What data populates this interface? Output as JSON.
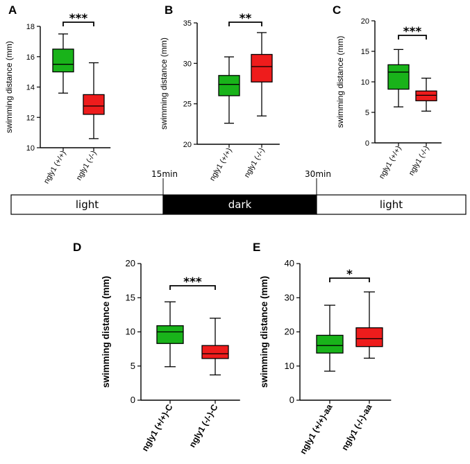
{
  "colors": {
    "wt": "#19b31a",
    "ko": "#ee1c1c",
    "dark": "#000000",
    "light": "#ffffff"
  },
  "timeline": {
    "segments": [
      {
        "label": "light",
        "kind": "light"
      },
      {
        "label": "dark",
        "kind": "dark"
      },
      {
        "label": "light",
        "kind": "light"
      }
    ],
    "markers": [
      "15min",
      "30min"
    ]
  },
  "chart_data": [
    {
      "type": "box",
      "panel": "A",
      "ylabel": "swimming distance (mm)",
      "ylim": [
        10,
        18
      ],
      "yticks": [
        10,
        12,
        14,
        16,
        18
      ],
      "categories": [
        "ngly1 (+/+)",
        "ngly1 (-/-)"
      ],
      "boxes": [
        {
          "min": 13.6,
          "q1": 15.0,
          "median": 15.5,
          "q3": 16.5,
          "max": 17.5
        },
        {
          "min": 10.6,
          "q1": 12.2,
          "median": 12.75,
          "q3": 13.5,
          "max": 15.6
        }
      ],
      "significance": "***"
    },
    {
      "type": "box",
      "panel": "B",
      "ylabel": "swimming distance (mm)",
      "ylim": [
        20,
        35
      ],
      "yticks": [
        20,
        25,
        30,
        35
      ],
      "categories": [
        "ngly1 (+/+)",
        "ngly1 (-/-)"
      ],
      "boxes": [
        {
          "min": 22.6,
          "q1": 26.0,
          "median": 27.4,
          "q3": 28.5,
          "max": 30.8
        },
        {
          "min": 23.5,
          "q1": 27.7,
          "median": 29.6,
          "q3": 31.1,
          "max": 33.8
        }
      ],
      "significance": "**"
    },
    {
      "type": "box",
      "panel": "C",
      "ylabel": "swimming distance (mm)",
      "ylim": [
        0,
        20
      ],
      "yticks": [
        0,
        5,
        10,
        15,
        20
      ],
      "categories": [
        "ngly1 (+/+)",
        "ngly1 (-/-)"
      ],
      "boxes": [
        {
          "min": 5.9,
          "q1": 8.8,
          "median": 11.6,
          "q3": 12.8,
          "max": 15.3
        },
        {
          "min": 5.2,
          "q1": 6.9,
          "median": 7.8,
          "q3": 8.5,
          "max": 10.6
        }
      ],
      "significance": "***"
    },
    {
      "type": "box",
      "panel": "D",
      "ylabel": "swimming distance (mm)",
      "ylim": [
        0,
        20
      ],
      "yticks": [
        0,
        5,
        10,
        15,
        20
      ],
      "categories": [
        "ngly1 (+/+)-C",
        "ngly1 (-/-)-C"
      ],
      "boxes": [
        {
          "min": 4.9,
          "q1": 8.3,
          "median": 10.0,
          "q3": 10.9,
          "max": 14.4
        },
        {
          "min": 3.7,
          "q1": 6.1,
          "median": 6.8,
          "q3": 8.0,
          "max": 12.0
        }
      ],
      "significance": "***"
    },
    {
      "type": "box",
      "panel": "E",
      "ylabel": "swimming distance (mm)",
      "ylim": [
        0,
        40
      ],
      "yticks": [
        0,
        10,
        20,
        30,
        40
      ],
      "categories": [
        "ngly1 (+/+)-aa",
        "ngly1 (-/-)-aa"
      ],
      "boxes": [
        {
          "min": 8.5,
          "q1": 13.8,
          "median": 16.0,
          "q3": 19.0,
          "max": 27.8
        },
        {
          "min": 12.3,
          "q1": 15.7,
          "median": 18.0,
          "q3": 21.2,
          "max": 31.7
        }
      ],
      "significance": "*"
    }
  ]
}
